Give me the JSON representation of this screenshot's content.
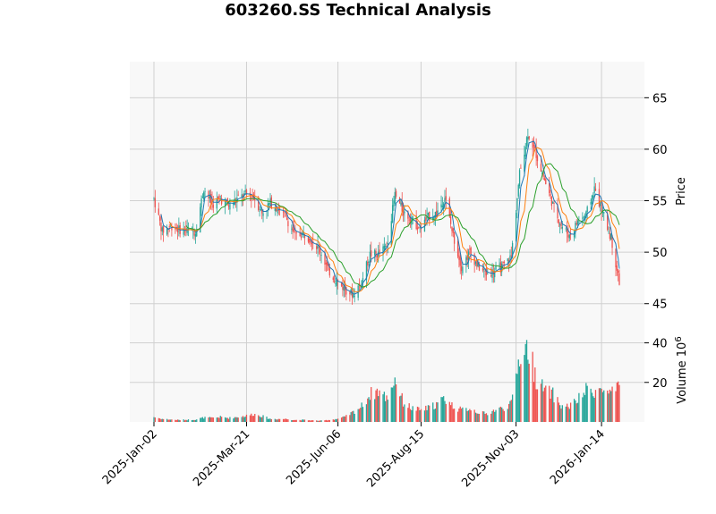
{
  "chart_data": {
    "type": "candlestick",
    "title": "603260.SS Technical Analysis",
    "price_panel": {
      "ylabel": "Price",
      "yticks": [
        45,
        50,
        55,
        60,
        65
      ],
      "ylim": [
        43.5,
        68.5
      ],
      "close_series": [
        [
          "2025-01-02",
          55.2
        ],
        [
          "2025-01-09",
          52.0
        ],
        [
          "2025-01-16",
          52.6
        ],
        [
          "2025-01-23",
          52.2
        ],
        [
          "2025-02-06",
          52.0
        ],
        [
          "2025-02-13",
          56.2
        ],
        [
          "2025-02-20",
          54.6
        ],
        [
          "2025-02-27",
          55.2
        ],
        [
          "2025-03-06",
          54.5
        ],
        [
          "2025-03-13",
          55.2
        ],
        [
          "2025-03-20",
          55.6
        ],
        [
          "2025-03-27",
          55.4
        ],
        [
          "2025-04-03",
          53.8
        ],
        [
          "2025-04-10",
          54.8
        ],
        [
          "2025-04-17",
          54.2
        ],
        [
          "2025-04-24",
          53.2
        ],
        [
          "2025-05-01",
          51.6
        ],
        [
          "2025-05-08",
          51.8
        ],
        [
          "2025-05-15",
          51.2
        ],
        [
          "2025-05-22",
          50.2
        ],
        [
          "2025-05-29",
          48.2
        ],
        [
          "2025-06-05",
          47.2
        ],
        [
          "2025-06-12",
          46.4
        ],
        [
          "2025-06-19",
          45.9
        ],
        [
          "2025-06-26",
          47.2
        ],
        [
          "2025-07-03",
          49.8
        ],
        [
          "2025-07-10",
          49.8
        ],
        [
          "2025-07-17",
          50.6
        ],
        [
          "2025-07-24",
          55.6
        ],
        [
          "2025-07-31",
          53.9
        ],
        [
          "2025-08-07",
          53.2
        ],
        [
          "2025-08-14",
          52.3
        ],
        [
          "2025-08-21",
          53.4
        ],
        [
          "2025-08-28",
          53.8
        ],
        [
          "2025-09-04",
          55.4
        ],
        [
          "2025-09-11",
          51.6
        ],
        [
          "2025-09-18",
          48.6
        ],
        [
          "2025-09-25",
          50.0
        ],
        [
          "2025-10-02",
          48.6
        ],
        [
          "2025-10-09",
          47.9
        ],
        [
          "2025-10-16",
          48.2
        ],
        [
          "2025-10-23",
          48.6
        ],
        [
          "2025-10-30",
          49.6
        ],
        [
          "2025-11-06",
          57.6
        ],
        [
          "2025-11-13",
          61.6
        ],
        [
          "2025-11-20",
          59.5
        ],
        [
          "2025-11-27",
          57.0
        ],
        [
          "2025-12-04",
          54.6
        ],
        [
          "2025-12-11",
          52.6
        ],
        [
          "2025-12-18",
          51.6
        ],
        [
          "2025-12-25",
          53.0
        ],
        [
          "2026-01-01",
          53.6
        ],
        [
          "2026-01-08",
          56.2
        ],
        [
          "2026-01-15",
          53.8
        ],
        [
          "2026-01-22",
          51.4
        ],
        [
          "2026-01-29",
          47.1
        ]
      ]
    },
    "volume_panel": {
      "ylabel": "Volume  10^6",
      "yticks": [
        20,
        40
      ],
      "ylim": [
        0,
        52
      ],
      "series": [
        [
          "2025-01-02",
          2.5
        ],
        [
          "2025-01-09",
          1.5
        ],
        [
          "2025-01-16",
          1.2
        ],
        [
          "2025-01-23",
          1.0
        ],
        [
          "2025-02-06",
          1.2
        ],
        [
          "2025-02-13",
          2.2
        ],
        [
          "2025-02-20",
          2.0
        ],
        [
          "2025-02-27",
          2.5
        ],
        [
          "2025-03-06",
          2.0
        ],
        [
          "2025-03-13",
          2.5
        ],
        [
          "2025-03-20",
          3.0
        ],
        [
          "2025-03-27",
          4.0
        ],
        [
          "2025-04-03",
          3.0
        ],
        [
          "2025-04-10",
          1.5
        ],
        [
          "2025-04-17",
          1.5
        ],
        [
          "2025-04-24",
          1.5
        ],
        [
          "2025-05-01",
          1.0
        ],
        [
          "2025-05-08",
          1.0
        ],
        [
          "2025-05-15",
          0.8
        ],
        [
          "2025-05-22",
          0.6
        ],
        [
          "2025-05-29",
          1.0
        ],
        [
          "2025-06-05",
          1.5
        ],
        [
          "2025-06-12",
          2.5
        ],
        [
          "2025-06-19",
          5.0
        ],
        [
          "2025-06-26",
          8.0
        ],
        [
          "2025-07-03",
          14.0
        ],
        [
          "2025-07-10",
          16.0
        ],
        [
          "2025-07-17",
          12.0
        ],
        [
          "2025-07-24",
          22.0
        ],
        [
          "2025-07-31",
          10.0
        ],
        [
          "2025-08-07",
          7.0
        ],
        [
          "2025-08-14",
          6.0
        ],
        [
          "2025-08-21",
          7.0
        ],
        [
          "2025-08-28",
          9.0
        ],
        [
          "2025-09-04",
          12.0
        ],
        [
          "2025-09-11",
          8.0
        ],
        [
          "2025-09-18",
          6.0
        ],
        [
          "2025-09-25",
          7.0
        ],
        [
          "2025-10-02",
          5.0
        ],
        [
          "2025-10-09",
          4.0
        ],
        [
          "2025-10-16",
          6.0
        ],
        [
          "2025-10-23",
          7.0
        ],
        [
          "2025-10-30",
          9.0
        ],
        [
          "2025-11-06",
          34.0
        ],
        [
          "2025-11-13",
          38.0
        ],
        [
          "2025-11-20",
          22.0
        ],
        [
          "2025-11-27",
          16.0
        ],
        [
          "2025-12-04",
          14.0
        ],
        [
          "2025-12-11",
          8.0
        ],
        [
          "2025-12-18",
          8.0
        ],
        [
          "2025-12-25",
          11.0
        ],
        [
          "2026-01-01",
          16.0
        ],
        [
          "2026-01-08",
          16.0
        ],
        [
          "2026-01-15",
          16.0
        ],
        [
          "2026-01-22",
          14.0
        ],
        [
          "2026-01-29",
          17.0
        ]
      ]
    },
    "x_ticks": [
      "2025-Jan-02",
      "2025-Mar-21",
      "2025-Jun-06",
      "2025-Aug-15",
      "2025-Nov-03",
      "2026-Jan-14"
    ],
    "moving_averages": [
      {
        "color": "#1f77b4"
      },
      {
        "color": "#ff7f0e"
      },
      {
        "color": "#2ca02c"
      }
    ],
    "up_color": "#26a69a",
    "down_color": "#ef5350",
    "grid": true,
    "background": "#f8f8f8"
  }
}
